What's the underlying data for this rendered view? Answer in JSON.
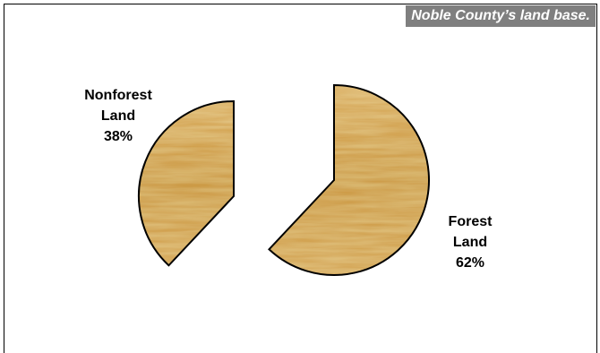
{
  "chart_data": {
    "type": "pie",
    "title": "Noble County’s land base.",
    "slices": [
      {
        "label_lines": [
          "Forest",
          "Land",
          "62%"
        ],
        "name": "Forest Land",
        "value": 62
      },
      {
        "label_lines": [
          "Nonforest",
          "Land",
          "38%"
        ],
        "name": "Nonforest Land",
        "value": 38
      }
    ],
    "exploded": true,
    "fill": "wood-grain texture",
    "colors": {
      "wood_light": "#e2c27c",
      "wood_mid": "#c9a057",
      "wood_dark": "#9b6f2c",
      "title_bg": "#7f7f7f",
      "title_text": "#ffffff",
      "outline": "#000000"
    }
  }
}
